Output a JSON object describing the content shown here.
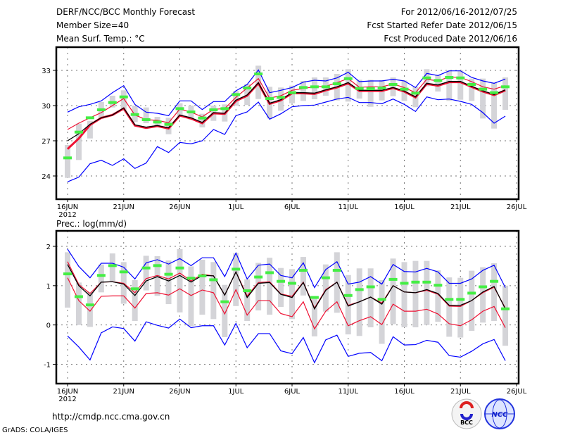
{
  "header": {
    "title": "DERF/NCC/BCC Monthly Forecast",
    "member_size": "Member Size=40",
    "variable": "Mean Surf. Temp.: °C",
    "period": "For 2012/06/16-2012/07/25",
    "started": "Fcst Started Refer Date 2012/06/15",
    "produced": "Fcst Produced Date 2012/06/16"
  },
  "footer": {
    "url": "http://cmdp.ncc.cma.gov.cn",
    "credit": "GrADS: COLA/IGES",
    "logos": [
      "BCC",
      "NCC"
    ]
  },
  "colors": {
    "max_min": "#0000ff",
    "red": "#ee1133",
    "mean": "#000000",
    "marker": "#44ee44",
    "box": "#d4d4d8",
    "grid": "#777777"
  },
  "chart_data": [
    {
      "type": "line",
      "title": "Mean Surf. Temp.: °C",
      "x_start": "16JUN 2012",
      "x_tick_labels": [
        "16JUN",
        "21JUN",
        "26JUN",
        "1JUL",
        "6JUL",
        "11JUL",
        "16JUL",
        "21JUL",
        "26JUL"
      ],
      "x_year_label": "2012",
      "y_ticks": [
        33,
        30,
        27,
        24
      ],
      "ylim": [
        22,
        35
      ],
      "grid": true,
      "series": [
        {
          "name": "max",
          "values": [
            29.44,
            29.9,
            30.1,
            30.4,
            31.1,
            31.7,
            30.1,
            29.44,
            29.34,
            29.14,
            30.4,
            30.4,
            29.66,
            30.34,
            30.34,
            31.26,
            31.8,
            33.04,
            31.1,
            31.3,
            31.54,
            32.0,
            32.16,
            32.1,
            32.36,
            32.84,
            32.04,
            32.1,
            32.1,
            32.24,
            32.1,
            31.54,
            32.74,
            32.56,
            32.96,
            32.96,
            32.4,
            32.1,
            31.9,
            32.26
          ]
        },
        {
          "name": "min",
          "values": [
            23.5,
            23.9,
            25.04,
            25.34,
            24.9,
            25.46,
            24.64,
            25.1,
            26.5,
            26.0,
            26.86,
            26.74,
            27.0,
            27.96,
            27.54,
            29.14,
            29.46,
            30.3,
            28.84,
            29.3,
            29.9,
            30.0,
            30.04,
            30.3,
            30.56,
            30.7,
            30.26,
            30.26,
            30.16,
            30.56,
            30.1,
            29.5,
            30.74,
            30.5,
            30.56,
            30.36,
            30.1,
            29.4,
            28.5,
            29.1
          ]
        },
        {
          "name": "upper-red",
          "values": [
            27.96,
            28.5,
            28.96,
            29.4,
            30.0,
            30.6,
            29.2,
            28.8,
            28.74,
            28.54,
            29.7,
            29.44,
            29.04,
            29.68,
            29.74,
            30.7,
            31.5,
            32.3,
            30.64,
            30.84,
            31.3,
            31.46,
            31.6,
            31.64,
            31.96,
            32.3,
            31.56,
            31.6,
            31.6,
            31.84,
            31.54,
            31.1,
            32.24,
            32.1,
            32.44,
            32.4,
            32.04,
            31.6,
            31.4,
            31.7
          ]
        },
        {
          "name": "control",
          "values": [
            26.3,
            27.2,
            28.35,
            28.95,
            29.2,
            29.75,
            28.3,
            28.1,
            28.25,
            28.05,
            29.15,
            28.9,
            28.5,
            29.35,
            29.3,
            30.4,
            30.85,
            31.9,
            30.15,
            30.45,
            31.05,
            31.05,
            31.0,
            31.3,
            31.55,
            31.9,
            31.25,
            31.25,
            31.25,
            31.5,
            31.2,
            30.7,
            31.85,
            31.7,
            32.0,
            32.0,
            31.6,
            31.2,
            30.9,
            31.3
          ]
        },
        {
          "name": "mean",
          "values": [
            27.0,
            27.6,
            28.4,
            28.96,
            29.2,
            29.8,
            28.36,
            28.16,
            28.3,
            28.1,
            29.2,
            28.96,
            28.56,
            29.4,
            29.34,
            30.46,
            30.9,
            31.94,
            30.2,
            30.5,
            31.1,
            31.1,
            31.06,
            31.34,
            31.6,
            31.96,
            31.3,
            31.3,
            31.3,
            31.54,
            31.24,
            30.74,
            31.9,
            31.76,
            32.06,
            32.06,
            31.64,
            31.26,
            30.94,
            31.34
          ]
        },
        {
          "name": "median",
          "values": [
            25.54,
            27.74,
            28.96,
            29.64,
            30.26,
            30.74,
            29.24,
            28.8,
            28.6,
            28.4,
            29.74,
            29.46,
            28.94,
            29.64,
            29.74,
            30.94,
            31.5,
            32.7,
            30.6,
            30.7,
            31.1,
            31.54,
            31.6,
            31.6,
            31.86,
            32.3,
            31.46,
            31.44,
            31.5,
            31.8,
            31.4,
            31.06,
            32.36,
            32.14,
            32.4,
            32.36,
            31.8,
            31.4,
            31.1,
            31.6
          ]
        }
      ],
      "box_low": [
        23.84,
        25.36,
        27.2,
        28.9,
        29.84,
        29.6,
        28.6,
        28.5,
        28.2,
        27.56,
        29.1,
        28.8,
        28.14,
        28.7,
        28.64,
        30.0,
        30.06,
        30.56,
        28.9,
        29.56,
        30.2,
        30.4,
        30.54,
        30.84,
        30.44,
        30.34,
        30.6,
        29.9,
        30.44,
        30.8,
        30.4,
        29.86,
        31.64,
        31.2,
        30.4,
        30.5,
        30.4,
        28.9,
        28.04,
        29.64
      ],
      "box_high": [
        26.64,
        28.46,
        28.7,
        30.3,
        30.84,
        31.3,
        30.0,
        29.84,
        29.04,
        28.96,
        30.2,
        30.0,
        29.3,
        30.0,
        30.1,
        31.24,
        31.84,
        33.4,
        31.6,
        31.54,
        31.7,
        32.1,
        32.4,
        32.4,
        32.7,
        33.1,
        32.2,
        32.2,
        32.16,
        32.4,
        32.14,
        31.6,
        33.1,
        32.6,
        33.0,
        33.0,
        32.3,
        32.3,
        31.96,
        32.4
      ]
    },
    {
      "type": "line",
      "title": "Prec.: log(mm/d)",
      "x_start": "16JUN 2012",
      "x_tick_labels": [
        "16JUN",
        "21JUN",
        "26JUN",
        "1JUL",
        "6JUL",
        "11JUL",
        "16JUL",
        "21JUL",
        "26JUL"
      ],
      "x_year_label": "2012",
      "y_ticks": [
        2,
        1,
        0,
        -1
      ],
      "ylim": [
        -1.5,
        2.4
      ],
      "grid": true,
      "series": [
        {
          "name": "max",
          "values": [
            1.93,
            1.49,
            1.2,
            1.57,
            1.57,
            1.47,
            1.17,
            1.58,
            1.66,
            1.55,
            1.69,
            1.51,
            1.71,
            1.71,
            1.23,
            1.83,
            1.17,
            1.52,
            1.55,
            1.26,
            1.2,
            1.58,
            0.95,
            1.41,
            1.61,
            1.04,
            1.09,
            1.23,
            1.04,
            1.54,
            1.36,
            1.35,
            1.44,
            1.35,
            1.06,
            1.06,
            1.17,
            1.39,
            1.52,
            0.95
          ]
        },
        {
          "name": "min",
          "values": [
            -0.28,
            -0.56,
            -0.89,
            -0.2,
            -0.05,
            -0.09,
            -0.41,
            0.08,
            -0.01,
            -0.08,
            0.15,
            -0.07,
            -0.02,
            -0.02,
            -0.51,
            0.04,
            -0.58,
            -0.22,
            -0.22,
            -0.66,
            -0.73,
            -0.32,
            -0.96,
            -0.38,
            -0.26,
            -0.8,
            -0.72,
            -0.7,
            -0.91,
            -0.3,
            -0.51,
            -0.5,
            -0.39,
            -0.44,
            -0.78,
            -0.82,
            -0.67,
            -0.48,
            -0.37,
            -0.91
          ]
        },
        {
          "name": "upper-red",
          "values": [
            1.61,
            1.03,
            0.8,
            1.09,
            1.1,
            1.06,
            0.82,
            1.18,
            1.26,
            1.17,
            1.32,
            1.12,
            1.29,
            1.25,
            0.76,
            1.35,
            0.74,
            1.08,
            1.1,
            0.79,
            0.73,
            1.09,
            0.43,
            0.9,
            1.09,
            0.5,
            0.59,
            0.71,
            0.56,
            1.0,
            0.84,
            0.82,
            0.88,
            0.78,
            0.48,
            0.47,
            0.62,
            0.82,
            0.96,
            0.43
          ]
        },
        {
          "name": "lower-red",
          "values": [
            1.2,
            0.62,
            0.35,
            0.73,
            0.74,
            0.74,
            0.43,
            0.8,
            0.82,
            0.76,
            0.92,
            0.75,
            0.89,
            0.82,
            0.28,
            0.9,
            0.25,
            0.62,
            0.62,
            0.29,
            0.21,
            0.59,
            -0.1,
            0.35,
            0.59,
            -0.02,
            0.11,
            0.21,
            0.01,
            0.53,
            0.35,
            0.35,
            0.4,
            0.28,
            0.03,
            -0.02,
            0.13,
            0.35,
            0.47,
            -0.07
          ]
        },
        {
          "name": "mean",
          "values": [
            1.54,
            1.0,
            0.74,
            1.09,
            1.1,
            1.04,
            0.75,
            1.12,
            1.23,
            1.12,
            1.26,
            1.09,
            1.26,
            1.25,
            0.76,
            1.35,
            0.7,
            1.06,
            1.08,
            0.78,
            0.7,
            1.08,
            0.41,
            0.88,
            1.09,
            0.48,
            0.59,
            0.71,
            0.53,
            1.0,
            0.84,
            0.82,
            0.9,
            0.8,
            0.5,
            0.5,
            0.62,
            0.84,
            0.98,
            0.41
          ]
        },
        {
          "name": "median",
          "values": [
            1.3,
            0.72,
            0.51,
            1.26,
            1.51,
            1.35,
            0.92,
            1.45,
            1.51,
            1.29,
            1.45,
            1.19,
            1.25,
            1.15,
            0.59,
            1.42,
            0.87,
            1.22,
            1.33,
            1.11,
            1.06,
            1.39,
            0.7,
            1.2,
            1.39,
            0.75,
            0.9,
            0.97,
            0.65,
            1.16,
            1.06,
            1.09,
            1.09,
            1.01,
            0.65,
            0.65,
            0.81,
            0.97,
            1.11,
            0.41
          ]
        }
      ],
      "box_low": [
        0.44,
        0.0,
        -0.05,
        0.83,
        1.11,
        0.54,
        0.1,
        0.88,
        0.74,
        0.53,
        0.32,
        -0.03,
        0.26,
        0.15,
        -0.31,
        0.48,
        0.1,
        0.37,
        0.26,
        0.46,
        0.15,
        0.75,
        -0.29,
        0.34,
        0.31,
        -0.24,
        -0.28,
        -0.06,
        -0.48,
        0.02,
        -0.06,
        -0.06,
        0.0,
        0.08,
        -0.3,
        -0.32,
        -0.15,
        0.06,
        0.1,
        -0.53
      ],
      "box_high": [
        1.85,
        1.08,
        0.84,
        1.54,
        1.82,
        1.6,
        1.14,
        1.76,
        1.75,
        1.64,
        1.93,
        1.49,
        1.66,
        1.6,
        1.02,
        1.83,
        1.16,
        1.58,
        1.71,
        1.45,
        1.42,
        1.73,
        0.69,
        1.54,
        1.85,
        1.27,
        1.44,
        1.44,
        1.14,
        1.69,
        1.6,
        1.63,
        1.63,
        1.39,
        1.21,
        1.2,
        1.38,
        1.47,
        1.57,
        1.0
      ]
    }
  ]
}
